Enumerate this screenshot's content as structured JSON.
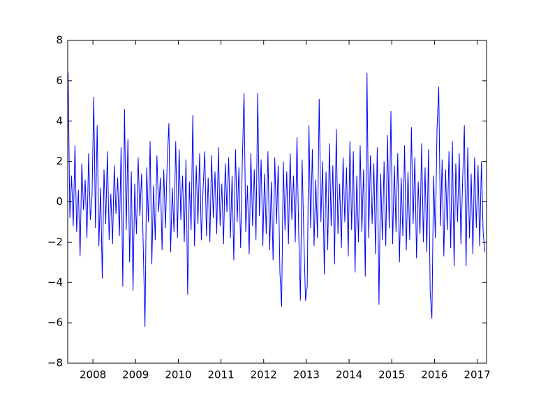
{
  "chart_data": {
    "type": "line",
    "color": "#0000ff",
    "xlim": [
      2007.41,
      2017.22
    ],
    "xticks": [
      2008,
      2009,
      2010,
      2011,
      2012,
      2013,
      2014,
      2015,
      2016,
      2017
    ],
    "ylim": [
      -8,
      8
    ],
    "yticks": [
      {
        "value": -8,
        "label": "−8"
      },
      {
        "value": -6,
        "label": "−6"
      },
      {
        "value": -4,
        "label": "−4"
      },
      {
        "value": -2,
        "label": "−2"
      },
      0,
      2,
      4,
      6,
      8
    ],
    "x": [
      2007.42,
      2007.46,
      2007.5,
      2007.54,
      2007.58,
      2007.62,
      2007.66,
      2007.7,
      2007.74,
      2007.78,
      2007.82,
      2007.86,
      2007.9,
      2007.94,
      2007.98,
      2008.02,
      2008.06,
      2008.1,
      2008.14,
      2008.18,
      2008.22,
      2008.26,
      2008.3,
      2008.34,
      2008.38,
      2008.42,
      2008.46,
      2008.5,
      2008.54,
      2008.58,
      2008.62,
      2008.66,
      2008.7,
      2008.74,
      2008.78,
      2008.82,
      2008.86,
      2008.9,
      2008.94,
      2008.98,
      2009.02,
      2009.06,
      2009.1,
      2009.14,
      2009.18,
      2009.22,
      2009.26,
      2009.3,
      2009.34,
      2009.38,
      2009.42,
      2009.46,
      2009.5,
      2009.54,
      2009.58,
      2009.62,
      2009.66,
      2009.7,
      2009.74,
      2009.78,
      2009.82,
      2009.86,
      2009.9,
      2009.94,
      2009.98,
      2010.02,
      2010.06,
      2010.1,
      2010.14,
      2010.18,
      2010.22,
      2010.26,
      2010.3,
      2010.34,
      2010.38,
      2010.42,
      2010.46,
      2010.5,
      2010.54,
      2010.58,
      2010.62,
      2010.66,
      2010.7,
      2010.74,
      2010.78,
      2010.82,
      2010.86,
      2010.9,
      2010.94,
      2010.98,
      2011.02,
      2011.06,
      2011.1,
      2011.14,
      2011.18,
      2011.22,
      2011.26,
      2011.3,
      2011.34,
      2011.38,
      2011.42,
      2011.46,
      2011.5,
      2011.54,
      2011.58,
      2011.62,
      2011.66,
      2011.7,
      2011.74,
      2011.78,
      2011.82,
      2011.86,
      2011.9,
      2011.94,
      2011.98,
      2012.02,
      2012.06,
      2012.1,
      2012.14,
      2012.18,
      2012.22,
      2012.26,
      2012.3,
      2012.34,
      2012.38,
      2012.42,
      2012.46,
      2012.5,
      2012.54,
      2012.58,
      2012.62,
      2012.66,
      2012.7,
      2012.74,
      2012.78,
      2012.82,
      2012.86,
      2012.9,
      2012.94,
      2012.98,
      2013.02,
      2013.06,
      2013.1,
      2013.14,
      2013.18,
      2013.22,
      2013.26,
      2013.3,
      2013.34,
      2013.38,
      2013.42,
      2013.46,
      2013.5,
      2013.54,
      2013.58,
      2013.62,
      2013.66,
      2013.7,
      2013.74,
      2013.78,
      2013.82,
      2013.86,
      2013.9,
      2013.94,
      2013.98,
      2014.02,
      2014.06,
      2014.1,
      2014.14,
      2014.18,
      2014.22,
      2014.26,
      2014.3,
      2014.34,
      2014.38,
      2014.42,
      2014.46,
      2014.5,
      2014.54,
      2014.58,
      2014.62,
      2014.66,
      2014.7,
      2014.74,
      2014.78,
      2014.82,
      2014.86,
      2014.9,
      2014.94,
      2014.98,
      2015.02,
      2015.06,
      2015.1,
      2015.14,
      2015.18,
      2015.22,
      2015.26,
      2015.3,
      2015.34,
      2015.38,
      2015.42,
      2015.46,
      2015.5,
      2015.54,
      2015.58,
      2015.62,
      2015.66,
      2015.7,
      2015.74,
      2015.78,
      2015.82,
      2015.86,
      2015.9,
      2015.94,
      2015.98,
      2016.02,
      2016.06,
      2016.1,
      2016.14,
      2016.18,
      2016.22,
      2016.26,
      2016.3,
      2016.34,
      2016.38,
      2016.42,
      2016.46,
      2016.5,
      2016.54,
      2016.58,
      2016.62,
      2016.66,
      2016.7,
      2016.74,
      2016.78,
      2016.82,
      2016.86,
      2016.9,
      2016.94,
      2016.98,
      2017.02,
      2017.06,
      2017.1,
      2017.14,
      2017.18
    ],
    "values": [
      6.4,
      -0.8,
      1.3,
      -1.2,
      2.8,
      -1.5,
      0.6,
      -2.7,
      1.9,
      -0.4,
      1.1,
      -1.8,
      2.4,
      -0.9,
      0.3,
      5.2,
      -1.3,
      3.8,
      -2.2,
      0.7,
      -3.8,
      1.6,
      -1.1,
      2.5,
      -1.9,
      0.4,
      -2.1,
      1.8,
      -0.6,
      1.2,
      -1.7,
      2.7,
      -4.2,
      4.6,
      -1.4,
      3.1,
      -3.0,
      1.5,
      -4.4,
      0.9,
      -1.6,
      2.2,
      -0.7,
      1.4,
      -2.3,
      -6.2,
      1.7,
      -1.0,
      3.0,
      -3.1,
      0.8,
      -1.9,
      2.3,
      -0.5,
      1.2,
      -2.4,
      1.6,
      -1.3,
      2.0,
      3.9,
      -2.5,
      0.7,
      -1.5,
      3.0,
      -1.8,
      2.6,
      -0.9,
      1.3,
      -2.0,
      2.1,
      -4.6,
      1.0,
      -1.4,
      4.3,
      -2.2,
      1.8,
      -1.1,
      2.4,
      -1.9,
      0.6,
      2.5,
      -1.7,
      1.2,
      -2.0,
      2.3,
      -0.8,
      1.5,
      -1.6,
      2.7,
      -1.2,
      0.9,
      -2.1,
      1.9,
      -0.5,
      2.2,
      -1.8,
      1.3,
      -2.9,
      2.6,
      -1.0,
      1.7,
      -2.3,
      2.0,
      5.4,
      -1.5,
      0.8,
      -2.6,
      2.4,
      -1.2,
      1.6,
      -1.9,
      5.4,
      -0.7,
      2.1,
      -2.2,
      1.4,
      -1.6,
      2.5,
      -2.4,
      1.0,
      -2.9,
      2.2,
      -1.1,
      1.8,
      -3.5,
      -5.2,
      2.0,
      -1.4,
      1.5,
      -2.1,
      2.4,
      -0.9,
      1.3,
      -2.0,
      3.2,
      -1.5,
      -4.9,
      2.1,
      -1.7,
      -4.9,
      -4.2,
      3.8,
      -1.3,
      2.6,
      -2.2,
      1.1,
      -1.8,
      5.1,
      -1.0,
      2.0,
      -3.6,
      1.5,
      -2.4,
      2.9,
      -1.2,
      1.8,
      -3.1,
      3.6,
      -1.6,
      0.9,
      -2.3,
      2.2,
      -1.0,
      1.7,
      -2.7,
      3.0,
      -1.4,
      2.5,
      -3.5,
      1.3,
      -2.0,
      2.8,
      -1.5,
      1.6,
      -3.7,
      6.4,
      -1.8,
      2.3,
      -1.1,
      1.9,
      -2.6,
      2.7,
      -5.1,
      1.4,
      -1.9,
      2.0,
      -2.2,
      3.3,
      -1.3,
      4.5,
      -2.1,
      1.8,
      -1.5,
      2.4,
      -3.0,
      1.2,
      -1.7,
      2.8,
      -2.4,
      1.5,
      -1.9,
      3.7,
      -1.1,
      2.2,
      -2.8,
      1.0,
      -1.6,
      2.9,
      -2.0,
      1.7,
      -2.5,
      2.6,
      -4.5,
      -5.8,
      1.3,
      -1.8,
      3.6,
      5.7,
      -1.2,
      2.1,
      -2.7,
      1.6,
      -1.4,
      2.5,
      -2.3,
      3.0,
      -3.2,
      1.9,
      -1.0,
      2.4,
      -2.1,
      1.1,
      3.8,
      -3.2,
      2.7,
      -1.8,
      1.4,
      -2.6,
      2.2,
      -1.3,
      1.8,
      -2.2,
      2.0,
      -1.5,
      -2.5
    ]
  }
}
